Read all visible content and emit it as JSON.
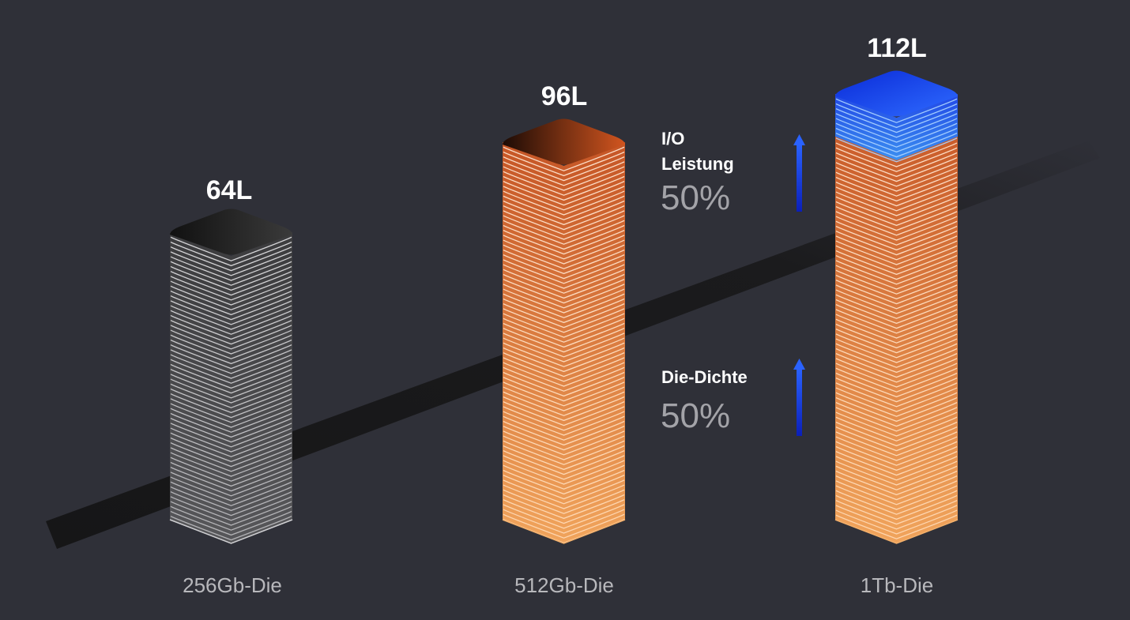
{
  "stacks": [
    {
      "layers_label": "64L",
      "die_label": "256Gb-Die",
      "palette": "gray"
    },
    {
      "layers_label": "96L",
      "die_label": "512Gb-Die",
      "palette": "orange"
    },
    {
      "layers_label": "112L",
      "die_label": "1Tb-Die",
      "palette": "orange-blue"
    }
  ],
  "metrics": {
    "io": {
      "name_line1": "I/O",
      "name_line2": "Leistung",
      "value": "50%"
    },
    "density": {
      "name": "Die-Dichte",
      "value": "50%"
    }
  },
  "colors": {
    "background": "#2f3038",
    "gray_stack": "#c8c8cc",
    "orange_stack": "#e8743a",
    "blue_top": "#1e4fff",
    "arrow": "#1338e6",
    "band": "#1a1a1c"
  }
}
